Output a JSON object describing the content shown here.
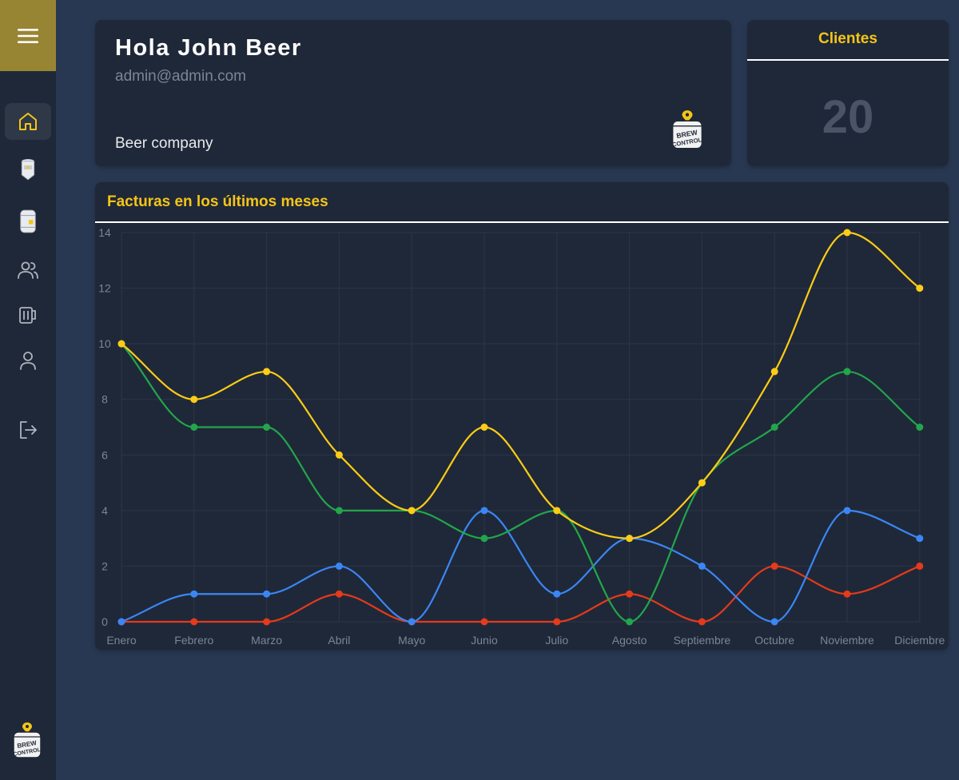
{
  "sidebar": {
    "menu_icon": "hamburger-icon",
    "items": [
      {
        "name": "home",
        "icon": "home-icon",
        "active": true
      },
      {
        "name": "fermenter",
        "icon": "fermenter-icon",
        "active": false
      },
      {
        "name": "keg",
        "icon": "keg-icon",
        "active": false
      },
      {
        "name": "clients",
        "icon": "users-icon",
        "active": false
      },
      {
        "name": "beers",
        "icon": "beer-mug-icon",
        "active": false
      },
      {
        "name": "profile",
        "icon": "user-icon",
        "active": false
      },
      {
        "name": "logout",
        "icon": "logout-icon",
        "active": false
      }
    ],
    "brand_logo": "brew-control-logo"
  },
  "greeting": {
    "title": "Hola John Beer",
    "email": "admin@admin.com",
    "company": "Beer company",
    "logo": "brew-control-logo"
  },
  "clients": {
    "title": "Clientes",
    "value": "20"
  },
  "chart_title": "Facturas en los últimos meses",
  "colors": {
    "accent": "#f5c518",
    "yellow": "#fccc16",
    "green": "#22a64b",
    "blue": "#3b86f5",
    "red": "#e53a1b"
  },
  "chart_data": {
    "type": "line",
    "title": "Facturas en los últimos meses",
    "categories": [
      "Enero",
      "Febrero",
      "Marzo",
      "Abril",
      "Mayo",
      "Junio",
      "Julio",
      "Agosto",
      "Septiembre",
      "Octubre",
      "Noviembre",
      "Diciembre"
    ],
    "ylim": [
      0,
      14
    ],
    "yticks": [
      0,
      2,
      4,
      6,
      8,
      10,
      12,
      14
    ],
    "grid": true,
    "series": [
      {
        "name": "yellow",
        "color": "#fccc16",
        "values": [
          10,
          8,
          9,
          6,
          4,
          7,
          4,
          3,
          5,
          9,
          14,
          12
        ]
      },
      {
        "name": "green",
        "color": "#22a64b",
        "values": [
          10,
          7,
          7,
          4,
          4,
          3,
          4,
          0,
          5,
          7,
          9,
          7
        ]
      },
      {
        "name": "blue",
        "color": "#3b86f5",
        "values": [
          0,
          1,
          1,
          2,
          0,
          4,
          1,
          3,
          2,
          0,
          4,
          3
        ]
      },
      {
        "name": "red",
        "color": "#e53a1b",
        "values": [
          0,
          0,
          0,
          1,
          0,
          0,
          0,
          1,
          0,
          2,
          1,
          2
        ]
      }
    ]
  }
}
